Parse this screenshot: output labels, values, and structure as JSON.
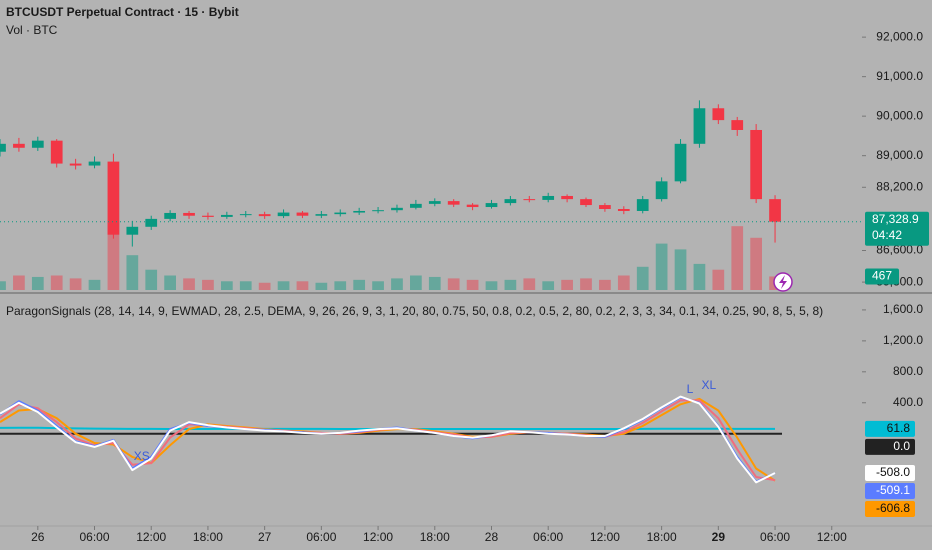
{
  "chart_data": [
    {
      "type": "candlestick",
      "title": "BTCUSDT Perpetual Contract · 15 · Bybit",
      "subtitle": "Vol · BTC",
      "x": [
        -4,
        -2,
        0,
        2,
        4,
        6,
        8,
        10,
        12,
        14,
        16,
        18,
        20,
        22,
        24,
        26,
        28,
        30,
        32,
        34,
        36,
        38,
        40,
        42,
        44,
        46,
        48,
        50,
        52,
        54,
        56,
        58,
        60,
        62,
        64,
        66,
        68,
        70,
        72,
        74,
        76,
        78
      ],
      "open": [
        89100,
        89300,
        89200,
        89380,
        88800,
        88750,
        88850,
        87000,
        87200,
        87400,
        87550,
        87480,
        87450,
        87500,
        87520,
        87470,
        87560,
        87480,
        87520,
        87560,
        87600,
        87620,
        87680,
        87780,
        87850,
        87760,
        87700,
        87800,
        87900,
        87880,
        87980,
        87900,
        87750,
        87650,
        87600,
        87900,
        88350,
        89300,
        90200,
        89900,
        89650,
        87900
      ],
      "high": [
        89420,
        89450,
        89480,
        89420,
        88920,
        88980,
        89050,
        87350,
        87480,
        87620,
        87600,
        87560,
        87580,
        87600,
        87580,
        87640,
        87600,
        87600,
        87640,
        87680,
        87700,
        87760,
        87880,
        87920,
        87900,
        87800,
        87880,
        87980,
        87980,
        88060,
        88020,
        87940,
        87800,
        87720,
        87980,
        88450,
        89420,
        90400,
        90300,
        89980,
        89800,
        88000
      ],
      "low": [
        88980,
        89100,
        89120,
        88700,
        88650,
        88680,
        86900,
        86700,
        87120,
        87340,
        87400,
        87380,
        87400,
        87440,
        87400,
        87420,
        87420,
        87420,
        87460,
        87500,
        87540,
        87560,
        87640,
        87720,
        87700,
        87620,
        87660,
        87740,
        87820,
        87820,
        87820,
        87700,
        87580,
        87520,
        87540,
        87840,
        88300,
        89200,
        89800,
        89500,
        87800,
        86800
      ],
      "close": [
        89300,
        89200,
        89380,
        88800,
        88750,
        88850,
        87000,
        87200,
        87400,
        87550,
        87480,
        87450,
        87500,
        87520,
        87470,
        87560,
        87480,
        87520,
        87560,
        87600,
        87620,
        87680,
        87780,
        87850,
        87760,
        87700,
        87800,
        87900,
        87880,
        87980,
        87900,
        87750,
        87650,
        87600,
        87900,
        88350,
        89300,
        90200,
        89900,
        89650,
        87900,
        87328.9
      ],
      "volume": [
        300,
        500,
        450,
        500,
        400,
        350,
        2400,
        1200,
        700,
        500,
        400,
        350,
        300,
        300,
        250,
        300,
        300,
        250,
        300,
        350,
        300,
        400,
        500,
        450,
        400,
        350,
        300,
        350,
        400,
        300,
        350,
        400,
        350,
        500,
        800,
        1600,
        1400,
        900,
        700,
        2200,
        1800,
        467
      ],
      "last_value_label": "87,328.9",
      "countdown": "04:42",
      "last_volume_label": "467",
      "up_color": "#089981",
      "down_color": "#f23645",
      "xlim": [
        -4,
        87.2
      ],
      "ylim": [
        85600,
        92940
      ],
      "vlim": [
        0,
        10000
      ],
      "yticks": [
        {
          "value": 92000,
          "label": "92,000.0"
        },
        {
          "value": 91000,
          "label": "91,000.0"
        },
        {
          "value": 90000,
          "label": "90,000.0"
        },
        {
          "value": 89000,
          "label": "89,000.0"
        },
        {
          "value": 88200,
          "label": "88,200.0"
        },
        {
          "value": 86600,
          "label": "86,600.0"
        },
        {
          "value": 85800,
          "label": "85,800.0"
        }
      ]
    },
    {
      "type": "line",
      "title": "ParagonSignals (28, 14, 14, 9, EWMAD, 28, 2.5, DEMA, 9, 26, 26, 9, 3, 1, 20, 80, 0.75, 50, 0.8, 0.2, 0.5, 2, 80, 0.2, 2, 3, 3, 34, 0.1, 34, 0.25, 90, 8, 5, 5, 8)",
      "x": [
        -4,
        -2,
        0,
        2,
        4,
        6,
        8,
        10,
        12,
        14,
        16,
        18,
        20,
        22,
        24,
        26,
        28,
        30,
        32,
        34,
        36,
        38,
        40,
        42,
        44,
        46,
        48,
        50,
        52,
        54,
        56,
        58,
        60,
        62,
        64,
        66,
        68,
        70,
        72,
        74,
        76,
        78
      ],
      "series": [
        {
          "color": "#00bcd4",
          "values": [
            75,
            78,
            76,
            72,
            68,
            66,
            64,
            62,
            62,
            61,
            61,
            61,
            62,
            62,
            62,
            62,
            62,
            62,
            61,
            61,
            61,
            61,
            61,
            61,
            61,
            61,
            61,
            61,
            61,
            61,
            61,
            61,
            61,
            61,
            62,
            63,
            64,
            64,
            63,
            62,
            62,
            61.8
          ],
          "last_label": "61.8"
        },
        {
          "color": "#ff9800",
          "values": [
            150,
            300,
            320,
            200,
            0,
            -120,
            -140,
            -300,
            -380,
            -150,
            60,
            120,
            100,
            80,
            60,
            40,
            30,
            10,
            0,
            10,
            40,
            60,
            60,
            30,
            0,
            -40,
            -40,
            0,
            20,
            10,
            0,
            -10,
            -30,
            0,
            100,
            240,
            380,
            450,
            300,
            -50,
            -450,
            -606.8
          ],
          "last_label": "-606.8"
        },
        {
          "color": "#f26d7d",
          "values": [
            200,
            380,
            330,
            150,
            -60,
            -150,
            -120,
            -400,
            -380,
            -50,
            120,
            110,
            90,
            70,
            50,
            40,
            20,
            10,
            0,
            20,
            50,
            70,
            50,
            20,
            -10,
            -50,
            -40,
            10,
            20,
            10,
            0,
            -20,
            -40,
            20,
            140,
            290,
            430,
            430,
            200,
            -200,
            -560,
            -600
          ]
        },
        {
          "color": "#5b7cff",
          "values": [
            250,
            420,
            300,
            100,
            -100,
            -160,
            -80,
            -450,
            -300,
            60,
            140,
            100,
            80,
            60,
            50,
            30,
            20,
            0,
            10,
            30,
            60,
            80,
            40,
            10,
            -30,
            -60,
            -20,
            30,
            20,
            10,
            -10,
            -30,
            -40,
            60,
            180,
            330,
            470,
            400,
            100,
            -300,
            -620,
            -509.1
          ],
          "last_label": "-509.1"
        },
        {
          "color": "#ffffff",
          "values": [
            260,
            400,
            280,
            80,
            -110,
            -170,
            -90,
            -470,
            -320,
            40,
            150,
            110,
            80,
            60,
            40,
            30,
            10,
            0,
            10,
            40,
            60,
            70,
            40,
            10,
            -30,
            -50,
            -20,
            30,
            20,
            0,
            -10,
            -30,
            -30,
            70,
            190,
            340,
            480,
            390,
            90,
            -320,
            -630,
            -508.0
          ],
          "last_label": "-508.0"
        }
      ],
      "hline": {
        "value": 0,
        "label": "0.0",
        "color": "#222222"
      },
      "annotations": [
        {
          "text": "XS",
          "x": 11,
          "y": -300
        },
        {
          "text": "L",
          "x": 69,
          "y": 565
        },
        {
          "text": "XL",
          "x": 71,
          "y": 620
        }
      ],
      "xlim": [
        -4,
        87.2
      ],
      "ylim": [
        -1180,
        1780
      ],
      "yticks": [
        {
          "value": 1600,
          "label": "1,600.0"
        },
        {
          "value": 1200,
          "label": "1,200.0"
        },
        {
          "value": 800,
          "label": "800.0"
        },
        {
          "value": 400,
          "label": "400.0"
        }
      ],
      "xticks": [
        {
          "value": 0,
          "label": "26"
        },
        {
          "value": 6,
          "label": "06:00"
        },
        {
          "value": 12,
          "label": "12:00"
        },
        {
          "value": 18,
          "label": "18:00"
        },
        {
          "value": 24,
          "label": "27"
        },
        {
          "value": 30,
          "label": "06:00"
        },
        {
          "value": 36,
          "label": "12:00"
        },
        {
          "value": 42,
          "label": "18:00"
        },
        {
          "value": 48,
          "label": "28"
        },
        {
          "value": 54,
          "label": "06:00"
        },
        {
          "value": 60,
          "label": "12:00"
        },
        {
          "value": 66,
          "label": "18:00"
        },
        {
          "value": 72,
          "label": "29"
        },
        {
          "value": 78,
          "label": "06:00"
        },
        {
          "value": 84,
          "label": "12:00"
        }
      ]
    }
  ]
}
